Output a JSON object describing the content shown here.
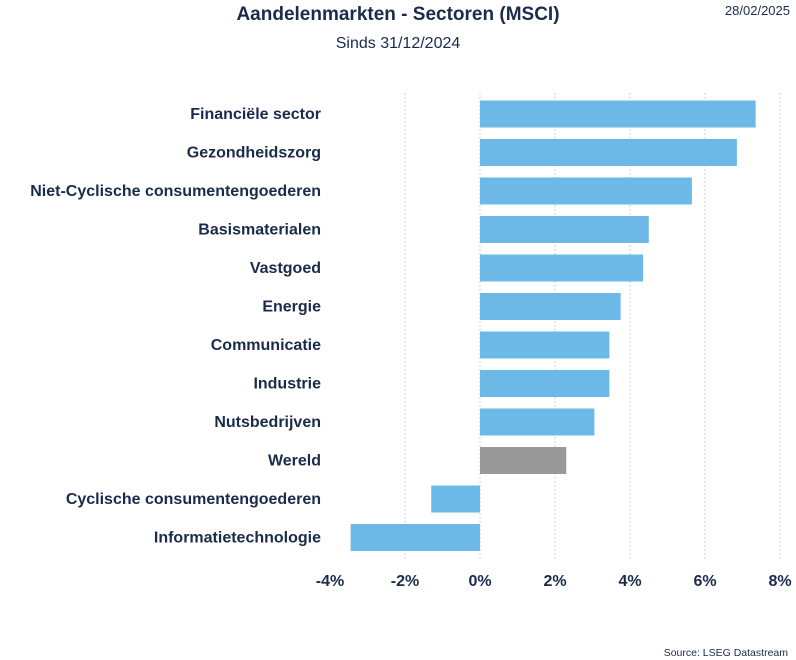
{
  "date": "28/02/2025",
  "source": "Source: LSEG Datastream",
  "chart_data": {
    "type": "bar",
    "orientation": "horizontal",
    "title": "Aandelenmarkten - Sectoren (MSCI)",
    "subtitle": "Sinds 31/12/2024",
    "xlabel": "",
    "ylabel": "",
    "xlim": [
      -4,
      8
    ],
    "x_ticks": [
      "-4%",
      "-2%",
      "0%",
      "2%",
      "4%",
      "6%",
      "8%"
    ],
    "grid": "vertical dotted",
    "categories": [
      "Financiële sector",
      "Gezondheidszorg",
      "Niet-Cyclische consumentengoederen",
      "Basismaterialen",
      "Vastgoed",
      "Energie",
      "Communicatie",
      "Industrie",
      "Nutsbedrijven",
      "Wereld",
      "Cyclische consumentengoederen",
      "Informatietechnologie"
    ],
    "values": [
      7.35,
      6.85,
      5.65,
      4.5,
      4.35,
      3.75,
      3.45,
      3.45,
      3.05,
      2.3,
      -1.3,
      -3.45
    ],
    "colors": {
      "default": "#6cb8e6",
      "highlight": "#999999",
      "highlight_category": "Wereld",
      "grid": "#c0c0c0",
      "text": "#1a2b4c"
    }
  }
}
